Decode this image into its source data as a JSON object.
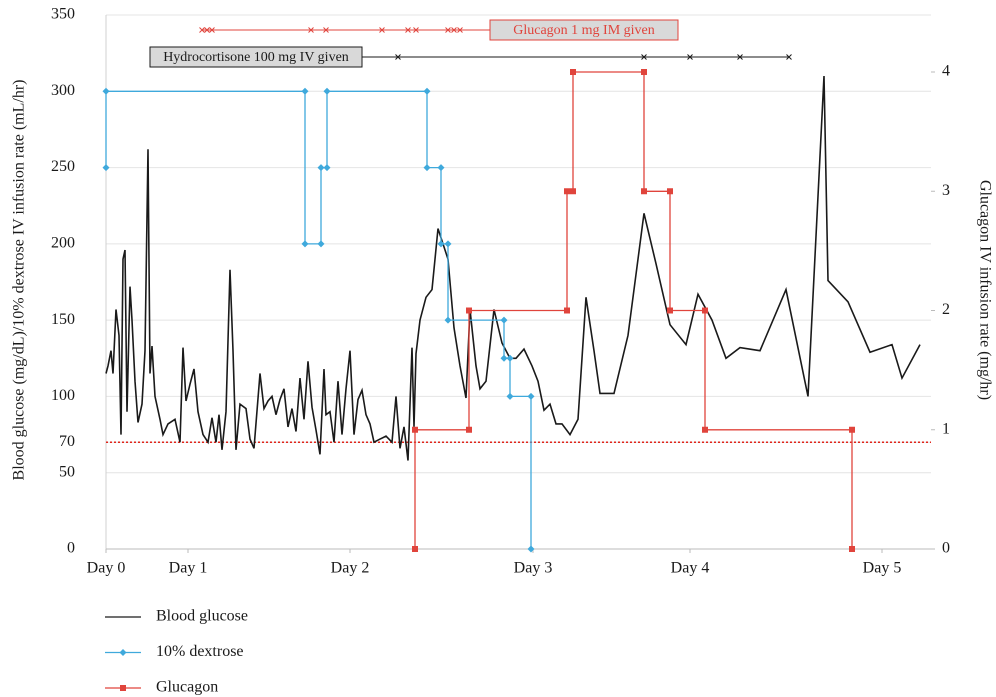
{
  "chart_data": {
    "type": "line",
    "y_label": "Blood glucose (mg/dL)/10% dextrose IV infusion rate (mL/hr)",
    "y2_label": "Glucagon IV infusion rate (mg/hr)",
    "xlim": [
      0,
      8.25
    ],
    "xticks": [
      {
        "value": 0,
        "label": "Day 0"
      },
      {
        "value": 0.82,
        "label": "Day 1"
      },
      {
        "value": 2.44,
        "label": "Day 2"
      },
      {
        "value": 4.27,
        "label": "Day 3"
      },
      {
        "value": 5.84,
        "label": "Day 4"
      },
      {
        "value": 7.76,
        "label": "Day 5"
      }
    ],
    "ylim": [
      0,
      350
    ],
    "yticks": [
      0,
      50,
      70,
      100,
      150,
      200,
      250,
      300,
      350
    ],
    "y2lim": [
      0,
      4.478
    ],
    "y2ticks": [
      0,
      1,
      2,
      3,
      4
    ],
    "grid": true,
    "threshold": {
      "value": 70,
      "color": "#e0251b"
    },
    "series": [
      {
        "name": "Blood glucose",
        "color": "#1a1a1a",
        "marker": "none",
        "x": [
          0,
          0.02,
          0.05,
          0.07,
          0.1,
          0.13,
          0.15,
          0.17,
          0.19,
          0.21,
          0.24,
          0.26,
          0.29,
          0.32,
          0.36,
          0.39,
          0.42,
          0.44,
          0.46,
          0.49,
          0.54,
          0.57,
          0.62,
          0.69,
          0.74,
          0.77,
          0.8,
          0.84,
          0.88,
          0.92,
          0.97,
          1.02,
          1.06,
          1.1,
          1.13,
          1.16,
          1.2,
          1.24,
          1.27,
          1.3,
          1.34,
          1.4,
          1.44,
          1.48,
          1.54,
          1.58,
          1.62,
          1.66,
          1.7,
          1.74,
          1.78,
          1.82,
          1.86,
          1.9,
          1.94,
          1.98,
          2.02,
          2.06,
          2.1,
          2.14,
          2.18,
          2.2,
          2.24,
          2.28,
          2.32,
          2.36,
          2.4,
          2.44,
          2.48,
          2.52,
          2.56,
          2.6,
          2.64,
          2.68,
          2.74,
          2.8,
          2.86,
          2.9,
          2.94,
          2.98,
          3.02,
          3.06,
          3.08,
          3.1,
          3.14,
          3.2,
          3.26,
          3.32,
          3.37,
          3.42,
          3.48,
          3.54,
          3.6,
          3.64,
          3.7,
          3.74,
          3.8,
          3.88,
          3.96,
          4.04,
          4.1,
          4.18,
          4.26,
          4.32,
          4.38,
          4.44,
          4.5,
          4.56,
          4.64,
          4.72,
          4.8,
          4.88,
          4.94,
          5.08,
          5.22,
          5.38,
          5.5,
          5.64,
          5.8,
          5.92,
          6.06,
          6.2,
          6.34,
          6.54,
          6.8,
          7.02,
          7.18,
          7.22,
          7.42,
          7.64,
          7.86,
          7.96,
          8.14
        ],
        "values": [
          115,
          120,
          130,
          115,
          157,
          140,
          75,
          190,
          196,
          90,
          172,
          150,
          110,
          83,
          95,
          130,
          262,
          115,
          133,
          100,
          85,
          75,
          82,
          85,
          70,
          132,
          97,
          108,
          118,
          90,
          75,
          70,
          86,
          70,
          88,
          65,
          90,
          183,
          130,
          65,
          95,
          92,
          72,
          66,
          115,
          92,
          97,
          100,
          88,
          98,
          105,
          80,
          92,
          77,
          112,
          85,
          123,
          93,
          78,
          62,
          118,
          88,
          90,
          70,
          110,
          75,
          105,
          130,
          75,
          98,
          104,
          88,
          82,
          70,
          72,
          74,
          70,
          100,
          66,
          80,
          58,
          132,
          80,
          128,
          150,
          165,
          170,
          210,
          200,
          190,
          145,
          120,
          99,
          157,
          120,
          105,
          110,
          157,
          135,
          125,
          125,
          131,
          120,
          110,
          91,
          95,
          82,
          82,
          75,
          85,
          165,
          130,
          102,
          102,
          140,
          220,
          187,
          147,
          134,
          167,
          150,
          125,
          132,
          130,
          170,
          100,
          310,
          176,
          162,
          129,
          134,
          112,
          134
        ]
      },
      {
        "name": "10% dextrose",
        "color": "#3fa9dc",
        "marker": "diamond",
        "x": [
          0,
          0,
          1.99,
          1.99,
          2.15,
          2.15,
          2.21,
          2.21,
          3.21,
          3.21,
          3.35,
          3.35,
          3.42,
          3.42,
          3.98,
          3.98,
          4.04,
          4.04,
          4.25,
          4.25
        ],
        "values": [
          250,
          300,
          300,
          200,
          200,
          250,
          250,
          300,
          300,
          250,
          250,
          200,
          200,
          150,
          150,
          125,
          125,
          100,
          100,
          0
        ]
      },
      {
        "name": "Glucagon",
        "color": "#e0443c",
        "marker": "square",
        "axis": "y2",
        "x": [
          3.09,
          3.09,
          3.63,
          3.63,
          4.61,
          4.61,
          4.67,
          4.67,
          5.38,
          5.38,
          5.64,
          5.64,
          5.99,
          5.99,
          7.46,
          7.46
        ],
        "values": [
          0,
          1,
          1,
          2,
          2,
          3,
          3,
          4,
          4,
          3,
          3,
          2,
          2,
          1,
          1,
          0
        ]
      }
    ],
    "annotations": [
      {
        "text": "Glucagon 1 mg IM given",
        "color": "#e0443c",
        "x": [
          0.96,
          1.01,
          1.06,
          2.05,
          2.2,
          2.76,
          3.02,
          3.1,
          3.42,
          3.48,
          3.54
        ]
      },
      {
        "text": "Hydrocortisone 100 mg IV given",
        "color": "#1a1a1a",
        "x": [
          2.92,
          5.38,
          5.84,
          6.34,
          6.83
        ]
      }
    ]
  }
}
